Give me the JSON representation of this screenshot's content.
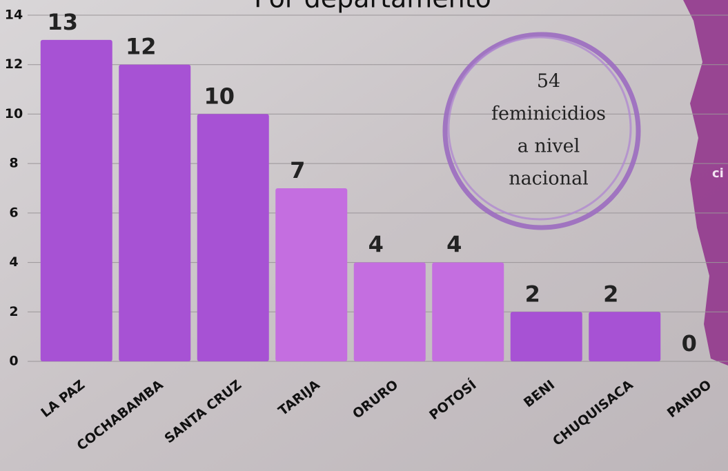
{
  "chart_data": {
    "type": "bar",
    "title": "Por departamento",
    "categories": [
      "LA PAZ",
      "COCHABAMBA",
      "SANTA CRUZ",
      "TARIJA",
      "ORURO",
      "POTOSÍ",
      "BENI",
      "CHUQUISACA",
      "PANDO"
    ],
    "values": [
      13,
      12,
      10,
      7,
      4,
      4,
      2,
      2,
      0
    ],
    "colors": [
      "#a752d4",
      "#a752d4",
      "#a752d4",
      "#c46ee0",
      "#c46ee0",
      "#c46ee0",
      "#a752d4",
      "#a752d4",
      "#a752d4"
    ],
    "ylim": [
      0,
      14
    ],
    "yticks": [
      0,
      2,
      4,
      6,
      8,
      10,
      12,
      14
    ],
    "grid": true,
    "annotation": [
      "54",
      "feminicidios",
      "a nivel",
      "nacional"
    ],
    "side_text": "ci"
  }
}
